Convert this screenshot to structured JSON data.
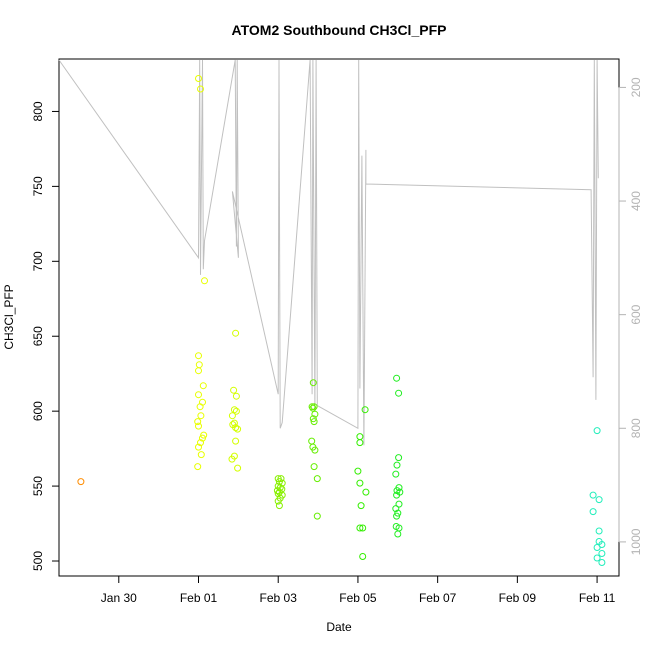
{
  "chart_data": {
    "type": "scatter",
    "title": "ATOM2 Southbound CH3Cl_PFP",
    "xlabel": "Date",
    "ylabel": "CH3Cl_PFP",
    "x_ticks": [
      "Jan 30",
      "Feb 01",
      "Feb 03",
      "Feb 05",
      "Feb 07",
      "Feb 09",
      "Feb 11"
    ],
    "x_tick_days": [
      30,
      32,
      34,
      36,
      38,
      40,
      42
    ],
    "xlim_days": [
      28.5,
      42.55
    ],
    "ylim": [
      490,
      835
    ],
    "y_ticks": [
      500,
      550,
      600,
      650,
      700,
      750,
      800
    ],
    "secondary_axis": {
      "ticks": [
        200,
        400,
        600,
        800,
        1000
      ],
      "range_top_to_bottom": [
        150,
        1060
      ],
      "color": "#b3b3b3"
    },
    "grid": false,
    "points": [
      {
        "x": 29.05,
        "y": 553,
        "color": "#ff8c00"
      },
      {
        "x": 32.0,
        "y": 822,
        "color": "#e8ff00"
      },
      {
        "x": 32.05,
        "y": 815,
        "color": "#e8ff00"
      },
      {
        "x": 32.15,
        "y": 687,
        "color": "#e8ff00"
      },
      {
        "x": 32.0,
        "y": 637,
        "color": "#e8ff00"
      },
      {
        "x": 32.02,
        "y": 631,
        "color": "#e8ff00"
      },
      {
        "x": 32.0,
        "y": 627,
        "color": "#e8ff00"
      },
      {
        "x": 32.12,
        "y": 617,
        "color": "#e8ff00"
      },
      {
        "x": 32.0,
        "y": 611,
        "color": "#e8ff00"
      },
      {
        "x": 32.1,
        "y": 606,
        "color": "#e8ff00"
      },
      {
        "x": 32.04,
        "y": 603,
        "color": "#e8ff00"
      },
      {
        "x": 32.06,
        "y": 597,
        "color": "#e8ff00"
      },
      {
        "x": 31.98,
        "y": 593,
        "color": "#e8ff00"
      },
      {
        "x": 32.0,
        "y": 590,
        "color": "#e8ff00"
      },
      {
        "x": 32.13,
        "y": 584,
        "color": "#e8ff00"
      },
      {
        "x": 32.1,
        "y": 582,
        "color": "#e8ff00"
      },
      {
        "x": 32.05,
        "y": 579,
        "color": "#e8ff00"
      },
      {
        "x": 32.0,
        "y": 576,
        "color": "#e8ff00"
      },
      {
        "x": 32.07,
        "y": 571,
        "color": "#e8ff00"
      },
      {
        "x": 31.98,
        "y": 563,
        "color": "#e8ff00"
      },
      {
        "x": 32.93,
        "y": 652,
        "color": "#d4ff00"
      },
      {
        "x": 32.88,
        "y": 614,
        "color": "#d4ff00"
      },
      {
        "x": 32.95,
        "y": 610,
        "color": "#d4ff00"
      },
      {
        "x": 32.9,
        "y": 601,
        "color": "#d4ff00"
      },
      {
        "x": 32.95,
        "y": 600,
        "color": "#d4ff00"
      },
      {
        "x": 32.85,
        "y": 597,
        "color": "#d4ff00"
      },
      {
        "x": 32.9,
        "y": 592,
        "color": "#d4ff00"
      },
      {
        "x": 32.86,
        "y": 591,
        "color": "#d4ff00"
      },
      {
        "x": 32.93,
        "y": 589,
        "color": "#d4ff00"
      },
      {
        "x": 32.98,
        "y": 588,
        "color": "#d4ff00"
      },
      {
        "x": 32.93,
        "y": 580,
        "color": "#d4ff00"
      },
      {
        "x": 32.9,
        "y": 570,
        "color": "#d4ff00"
      },
      {
        "x": 32.84,
        "y": 568,
        "color": "#d4ff00"
      },
      {
        "x": 32.98,
        "y": 562,
        "color": "#d4ff00"
      },
      {
        "x": 34.0,
        "y": 555,
        "color": "#88f000"
      },
      {
        "x": 34.07,
        "y": 555,
        "color": "#88f000"
      },
      {
        "x": 34.03,
        "y": 553,
        "color": "#88f000"
      },
      {
        "x": 34.1,
        "y": 552,
        "color": "#88f000"
      },
      {
        "x": 34.0,
        "y": 550,
        "color": "#88f000"
      },
      {
        "x": 34.05,
        "y": 549,
        "color": "#88f000"
      },
      {
        "x": 34.09,
        "y": 548,
        "color": "#88f000"
      },
      {
        "x": 33.98,
        "y": 547,
        "color": "#88f000"
      },
      {
        "x": 34.03,
        "y": 546,
        "color": "#88f000"
      },
      {
        "x": 34.0,
        "y": 545,
        "color": "#88f000"
      },
      {
        "x": 34.1,
        "y": 544,
        "color": "#88f000"
      },
      {
        "x": 34.05,
        "y": 542,
        "color": "#88f000"
      },
      {
        "x": 34.0,
        "y": 540,
        "color": "#88f000"
      },
      {
        "x": 34.03,
        "y": 537,
        "color": "#88f000"
      },
      {
        "x": 34.88,
        "y": 619,
        "color": "#66ee00"
      },
      {
        "x": 34.85,
        "y": 603,
        "color": "#66ee00"
      },
      {
        "x": 34.9,
        "y": 603,
        "color": "#66ee00"
      },
      {
        "x": 34.87,
        "y": 602,
        "color": "#66ee00"
      },
      {
        "x": 34.92,
        "y": 598,
        "color": "#66ee00"
      },
      {
        "x": 34.88,
        "y": 595,
        "color": "#66ee00"
      },
      {
        "x": 34.9,
        "y": 593,
        "color": "#66ee00"
      },
      {
        "x": 34.84,
        "y": 580,
        "color": "#66ee00"
      },
      {
        "x": 34.87,
        "y": 576,
        "color": "#66ee00"
      },
      {
        "x": 34.92,
        "y": 574,
        "color": "#66ee00"
      },
      {
        "x": 34.9,
        "y": 563,
        "color": "#66ee00"
      },
      {
        "x": 34.98,
        "y": 555,
        "color": "#66ee00"
      },
      {
        "x": 34.98,
        "y": 530,
        "color": "#66ee00"
      },
      {
        "x": 36.05,
        "y": 583,
        "color": "#33ee00"
      },
      {
        "x": 36.05,
        "y": 579,
        "color": "#33ee00"
      },
      {
        "x": 36.18,
        "y": 601,
        "color": "#33ee00"
      },
      {
        "x": 36.0,
        "y": 560,
        "color": "#33ee00"
      },
      {
        "x": 36.05,
        "y": 552,
        "color": "#33ee00"
      },
      {
        "x": 36.2,
        "y": 546,
        "color": "#33ee00"
      },
      {
        "x": 36.08,
        "y": 537,
        "color": "#33ee00"
      },
      {
        "x": 36.05,
        "y": 522,
        "color": "#33ee00"
      },
      {
        "x": 36.12,
        "y": 522,
        "color": "#33ee00"
      },
      {
        "x": 36.12,
        "y": 503,
        "color": "#33ee00"
      },
      {
        "x": 36.97,
        "y": 622,
        "color": "#22ee22"
      },
      {
        "x": 37.02,
        "y": 612,
        "color": "#22ee22"
      },
      {
        "x": 37.02,
        "y": 569,
        "color": "#22ee22"
      },
      {
        "x": 36.98,
        "y": 564,
        "color": "#22ee22"
      },
      {
        "x": 36.95,
        "y": 558,
        "color": "#22ee22"
      },
      {
        "x": 37.03,
        "y": 549,
        "color": "#22ee22"
      },
      {
        "x": 36.98,
        "y": 547,
        "color": "#22ee22"
      },
      {
        "x": 37.05,
        "y": 546,
        "color": "#22ee22"
      },
      {
        "x": 36.97,
        "y": 544,
        "color": "#22ee22"
      },
      {
        "x": 37.03,
        "y": 538,
        "color": "#22ee22"
      },
      {
        "x": 36.95,
        "y": 535,
        "color": "#22ee22"
      },
      {
        "x": 37.0,
        "y": 532,
        "color": "#22ee22"
      },
      {
        "x": 36.97,
        "y": 530,
        "color": "#22ee22"
      },
      {
        "x": 36.96,
        "y": 523,
        "color": "#22ee22"
      },
      {
        "x": 37.03,
        "y": 522,
        "color": "#22ee22"
      },
      {
        "x": 37.0,
        "y": 518,
        "color": "#22ee22"
      },
      {
        "x": 42.0,
        "y": 587,
        "color": "#22eebb"
      },
      {
        "x": 41.9,
        "y": 544,
        "color": "#22eebb"
      },
      {
        "x": 42.05,
        "y": 541,
        "color": "#22eebb"
      },
      {
        "x": 41.9,
        "y": 533,
        "color": "#22eebb"
      },
      {
        "x": 42.05,
        "y": 520,
        "color": "#22eebb"
      },
      {
        "x": 42.12,
        "y": 511,
        "color": "#22eebb"
      },
      {
        "x": 42.05,
        "y": 513,
        "color": "#22eebb"
      },
      {
        "x": 42.0,
        "y": 509,
        "color": "#22eebb"
      },
      {
        "x": 42.12,
        "y": 505,
        "color": "#22eebb"
      },
      {
        "x": 42.0,
        "y": 502,
        "color": "#22eebb"
      },
      {
        "x": 42.12,
        "y": 499,
        "color": "#22eebb"
      }
    ],
    "secondary_line": {
      "color": "#c0c0c0",
      "points": [
        [
          28.5,
          20
        ],
        [
          32.0,
          500
        ],
        [
          32.03,
          20
        ],
        [
          32.05,
          530
        ],
        [
          32.1,
          20
        ],
        [
          32.12,
          520
        ],
        [
          32.15,
          470
        ],
        [
          32.92,
          20
        ],
        [
          32.95,
          480
        ],
        [
          32.97,
          20
        ],
        [
          33.0,
          500
        ],
        [
          32.85,
          383
        ],
        [
          34.0,
          740
        ],
        [
          34.02,
          20
        ],
        [
          34.05,
          800
        ],
        [
          34.1,
          790
        ],
        [
          34.8,
          140
        ],
        [
          34.85,
          740
        ],
        [
          34.87,
          20
        ],
        [
          34.92,
          770
        ],
        [
          34.95,
          20
        ],
        [
          34.98,
          760
        ],
        [
          36.0,
          800
        ],
        [
          36.02,
          20
        ],
        [
          36.05,
          730
        ],
        [
          36.1,
          320
        ],
        [
          36.15,
          830
        ],
        [
          36.2,
          310
        ],
        [
          36.2,
          370
        ],
        [
          41.85,
          380
        ],
        [
          41.9,
          710
        ],
        [
          41.93,
          20
        ],
        [
          41.97,
          750
        ],
        [
          42.0,
          20
        ],
        [
          42.03,
          360
        ]
      ]
    }
  }
}
